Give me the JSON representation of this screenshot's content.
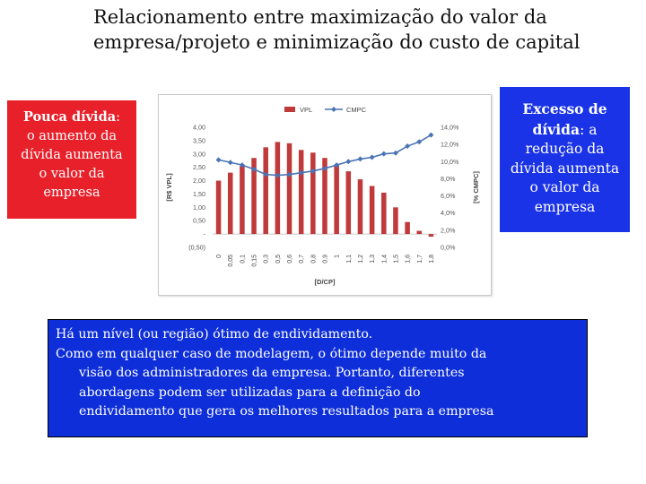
{
  "title": {
    "line1": "Relacionamento entre maximização do valor da",
    "line2": "empresa/projeto e minimização do custo de capital"
  },
  "left_box": {
    "bold": "Pouca dívida",
    "line1_rest": ":",
    "line2": "o aumento da",
    "line3": "dívida aumenta",
    "line4": "o valor da",
    "line5": "empresa",
    "bg_color": "#e8202a"
  },
  "right_box": {
    "bold1": "Excesso de",
    "bold2": "dívida",
    "line2_rest": ": a",
    "line3": "redução da",
    "line4": "dívida aumenta",
    "line5": "o valor da",
    "line6": "empresa",
    "bg_color": "#1a33e6"
  },
  "bottom_box": {
    "line1": "Há um nível (ou região) ótimo de endividamento.",
    "line2": "Como em qualquer caso de modelagem, o ótimo depende muito da",
    "line3": "visão dos administradores da empresa. Portanto, diferentes",
    "line4": "abordagens podem ser utilizadas para a definição do",
    "line5": "endividamento que gera os melhores resultados para a empresa",
    "bg_color": "#0d2ed8"
  },
  "chart_data": {
    "type": "bar",
    "title": "",
    "xlabel": "[D/CP]",
    "ylabel": "[R$ VPL]",
    "y2label": "[% CMPC]",
    "categories": [
      "0",
      "0,05",
      "0,1",
      "0,15",
      "0,3",
      "0,5",
      "0,6",
      "0,7",
      "0,8",
      "0,9",
      "1",
      "1,1",
      "1,2",
      "1,3",
      "1,4",
      "1,5",
      "1,6",
      "1,7",
      "1,8"
    ],
    "y_ticks": [
      "4,00",
      "3,50",
      "3,00",
      "2,50",
      "2,00",
      "1,50",
      "1,00",
      "0,50",
      "-",
      "(0,50)"
    ],
    "y2_ticks": [
      "14,0%",
      "12,0%",
      "10,0%",
      "8,0%",
      "6,0%",
      "4,0%",
      "2,0%",
      "0,0%"
    ],
    "ylim": [
      -0.5,
      4.0
    ],
    "y2lim": [
      0,
      14
    ],
    "legend_position": "top",
    "series": [
      {
        "name": "VPL",
        "type": "bar",
        "color": "#c0393b",
        "values": [
          2.0,
          2.3,
          2.55,
          2.85,
          3.25,
          3.45,
          3.4,
          3.15,
          3.05,
          2.85,
          2.6,
          2.35,
          2.05,
          1.8,
          1.55,
          1.0,
          0.45,
          0.12,
          -0.1
        ]
      },
      {
        "name": "CMPC",
        "type": "line",
        "color": "#4a74b4",
        "values": [
          10.2,
          9.9,
          9.6,
          9.1,
          8.5,
          8.4,
          8.5,
          8.7,
          8.9,
          9.2,
          9.6,
          10.0,
          10.3,
          10.5,
          10.9,
          11.0,
          11.8,
          12.3,
          13.1
        ]
      }
    ]
  }
}
